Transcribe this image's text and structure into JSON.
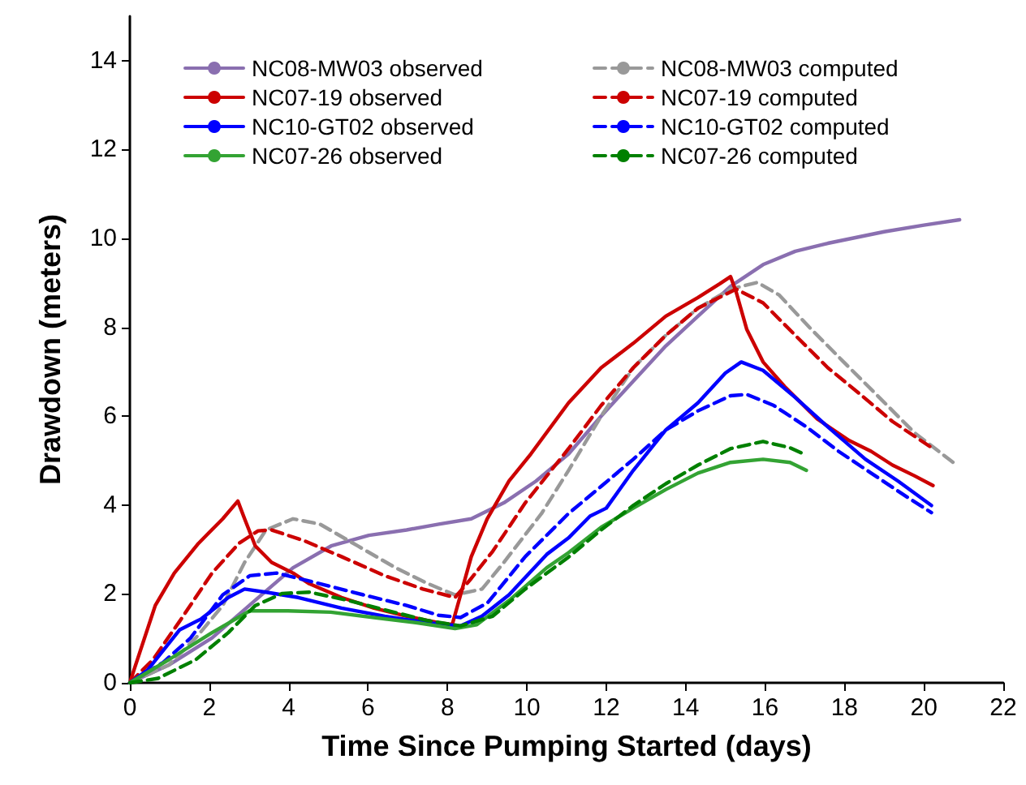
{
  "chart_data": {
    "type": "line",
    "xlabel": "Time Since Pumping Started (days)",
    "ylabel": "Drawdown (meters)",
    "xlim": [
      0,
      22
    ],
    "xticks": [
      0,
      2,
      4,
      6,
      8,
      10,
      12,
      14,
      16,
      18,
      20,
      22
    ],
    "ylim": [
      0,
      15
    ],
    "yticks": [
      0,
      2,
      4,
      6,
      8,
      10,
      12,
      14
    ],
    "grid": false,
    "legend": "top",
    "marker": "none",
    "series": [
      {
        "name": "NC08-MW03 observed",
        "color": "#8a6fb0",
        "line_style": "solid",
        "x": [
          0,
          0.98,
          2.07,
          3.16,
          4.11,
          5.07,
          6.02,
          6.97,
          7.78,
          8.6,
          9.42,
          10.23,
          11.05,
          11.87,
          12.68,
          13.5,
          14.31,
          15.13,
          15.95,
          16.76,
          17.58,
          19,
          20,
          20.9
        ],
        "values": [
          0,
          0.4,
          1.01,
          1.86,
          2.59,
          3.08,
          3.32,
          3.44,
          3.57,
          3.69,
          4.05,
          4.54,
          5.15,
          6.0,
          6.79,
          7.58,
          8.25,
          8.92,
          9.41,
          9.71,
          9.89,
          10.15,
          10.3,
          10.42
        ]
      },
      {
        "name": "NC08-MW03 computed",
        "color": "#999999",
        "line_style": "dashed",
        "x": [
          0,
          0.98,
          1.66,
          2.34,
          2.89,
          3.43,
          4.11,
          4.79,
          5.74,
          6.69,
          7.51,
          8.19,
          8.87,
          9.42,
          10.37,
          11.05,
          11.87,
          12.68,
          13.5,
          14.31,
          15.13,
          15.81,
          16.35,
          17.17,
          17.98,
          18.8,
          19.76,
          20.78
        ],
        "values": [
          0,
          0.4,
          1.01,
          1.74,
          2.71,
          3.44,
          3.69,
          3.57,
          3.08,
          2.59,
          2.23,
          1.98,
          2.11,
          2.71,
          3.81,
          4.78,
          6.0,
          7.09,
          7.82,
          8.43,
          8.86,
          9.01,
          8.73,
          7.95,
          7.22,
          6.49,
          5.63,
          4.93
        ]
      },
      {
        "name": "NC07-19 observed",
        "color": "#cc0000",
        "line_style": "solid",
        "x": [
          0,
          0.1,
          0.64,
          1.12,
          1.73,
          2.34,
          2.72,
          2.89,
          3.16,
          3.57,
          4.11,
          4.52,
          5.33,
          6.15,
          6.97,
          7.78,
          8.12,
          8.33,
          8.6,
          9.0,
          9.55,
          10.1,
          11.05,
          11.87,
          12.68,
          13.5,
          14.31,
          14.86,
          15.13,
          15.27,
          15.54,
          15.95,
          16.49,
          17.31,
          18.12,
          18.67,
          19.21,
          19.76,
          20.23
        ],
        "values": [
          0,
          0.28,
          1.74,
          2.47,
          3.14,
          3.69,
          4.09,
          3.69,
          3.08,
          2.71,
          2.47,
          2.23,
          1.92,
          1.68,
          1.5,
          1.35,
          1.31,
          1.98,
          2.84,
          3.69,
          4.54,
          5.15,
          6.3,
          7.09,
          7.64,
          8.25,
          8.67,
          8.98,
          9.14,
          8.8,
          7.95,
          7.22,
          6.67,
          5.94,
          5.45,
          5.21,
          4.9,
          4.66,
          4.44
        ]
      },
      {
        "name": "NC07-19 computed",
        "color": "#cc0000",
        "line_style": "dashed",
        "x": [
          0,
          0.58,
          1.25,
          2.07,
          2.75,
          3.23,
          3.57,
          4.38,
          5.33,
          6.42,
          7.38,
          8.19,
          8.6,
          9.14,
          9.96,
          11.05,
          11.87,
          12.68,
          13.5,
          14.31,
          15.27,
          15.95,
          16.76,
          17.58,
          18.4,
          19.21,
          20.23
        ],
        "values": [
          0,
          0.52,
          1.38,
          2.47,
          3.14,
          3.42,
          3.44,
          3.2,
          2.84,
          2.41,
          2.11,
          1.92,
          2.35,
          2.96,
          4.05,
          5.27,
          6.24,
          7.09,
          7.82,
          8.43,
          8.86,
          8.55,
          7.82,
          7.09,
          6.49,
          5.88,
          5.27
        ]
      },
      {
        "name": "NC10-GT02 observed",
        "color": "#0000ff",
        "line_style": "solid",
        "x": [
          0,
          0.44,
          1.25,
          1.8,
          2.48,
          2.89,
          3.43,
          4.24,
          5.33,
          6.42,
          7.51,
          8.33,
          8.87,
          9.55,
          10.5,
          11.05,
          11.59,
          12.0,
          12.68,
          13.5,
          14.31,
          15.0,
          15.4,
          15.95,
          16.76,
          17.58,
          18.53,
          19.35,
          20.19
        ],
        "values": [
          0,
          0.28,
          1.19,
          1.44,
          1.92,
          2.11,
          2.04,
          1.92,
          1.68,
          1.5,
          1.35,
          1.28,
          1.5,
          1.98,
          2.89,
          3.26,
          3.75,
          3.93,
          4.78,
          5.69,
          6.3,
          6.97,
          7.22,
          7.03,
          6.42,
          5.76,
          5.03,
          4.54,
          3.99
        ]
      },
      {
        "name": "NC10-GT02 computed",
        "color": "#0000ff",
        "line_style": "dashed",
        "x": [
          0,
          0.84,
          1.53,
          2.34,
          3.02,
          3.7,
          4.79,
          5.88,
          6.97,
          7.78,
          8.33,
          9.01,
          9.96,
          11.05,
          11.87,
          12.68,
          13.5,
          14.31,
          15.13,
          15.54,
          16.22,
          17.04,
          17.85,
          18.67,
          19.49,
          20.19
        ],
        "values": [
          0,
          0.46,
          1.01,
          1.98,
          2.41,
          2.47,
          2.23,
          1.98,
          1.74,
          1.52,
          1.47,
          1.8,
          2.84,
          3.81,
          4.42,
          5.03,
          5.69,
          6.12,
          6.46,
          6.49,
          6.24,
          5.76,
          5.21,
          4.72,
          4.23,
          3.83
        ]
      },
      {
        "name": "NC07-26 observed",
        "color": "#33a333",
        "line_style": "solid",
        "x": [
          0,
          0.98,
          2.07,
          3.02,
          3.98,
          5.06,
          6.15,
          7.24,
          8.19,
          8.74,
          9.56,
          10.5,
          11.05,
          11.87,
          12.68,
          13.5,
          14.31,
          15.13,
          15.95,
          16.63,
          17.04
        ],
        "values": [
          0,
          0.52,
          1.13,
          1.62,
          1.62,
          1.59,
          1.47,
          1.35,
          1.22,
          1.31,
          1.86,
          2.59,
          2.93,
          3.5,
          3.93,
          4.35,
          4.72,
          4.96,
          5.03,
          4.96,
          4.78
        ]
      },
      {
        "name": "NC07-26 computed",
        "color": "#008000",
        "line_style": "dashed",
        "x": [
          0,
          0.71,
          1.66,
          2.48,
          3.16,
          3.84,
          4.52,
          5.47,
          6.42,
          7.51,
          8.33,
          9.14,
          9.96,
          11.05,
          11.87,
          12.68,
          13.5,
          14.31,
          15.13,
          15.95,
          16.63,
          17.04
        ],
        "values": [
          0,
          0.1,
          0.52,
          1.13,
          1.74,
          2.01,
          2.04,
          1.86,
          1.64,
          1.4,
          1.28,
          1.5,
          2.11,
          2.83,
          3.44,
          3.99,
          4.48,
          4.9,
          5.27,
          5.43,
          5.29,
          5.12
        ]
      }
    ]
  }
}
